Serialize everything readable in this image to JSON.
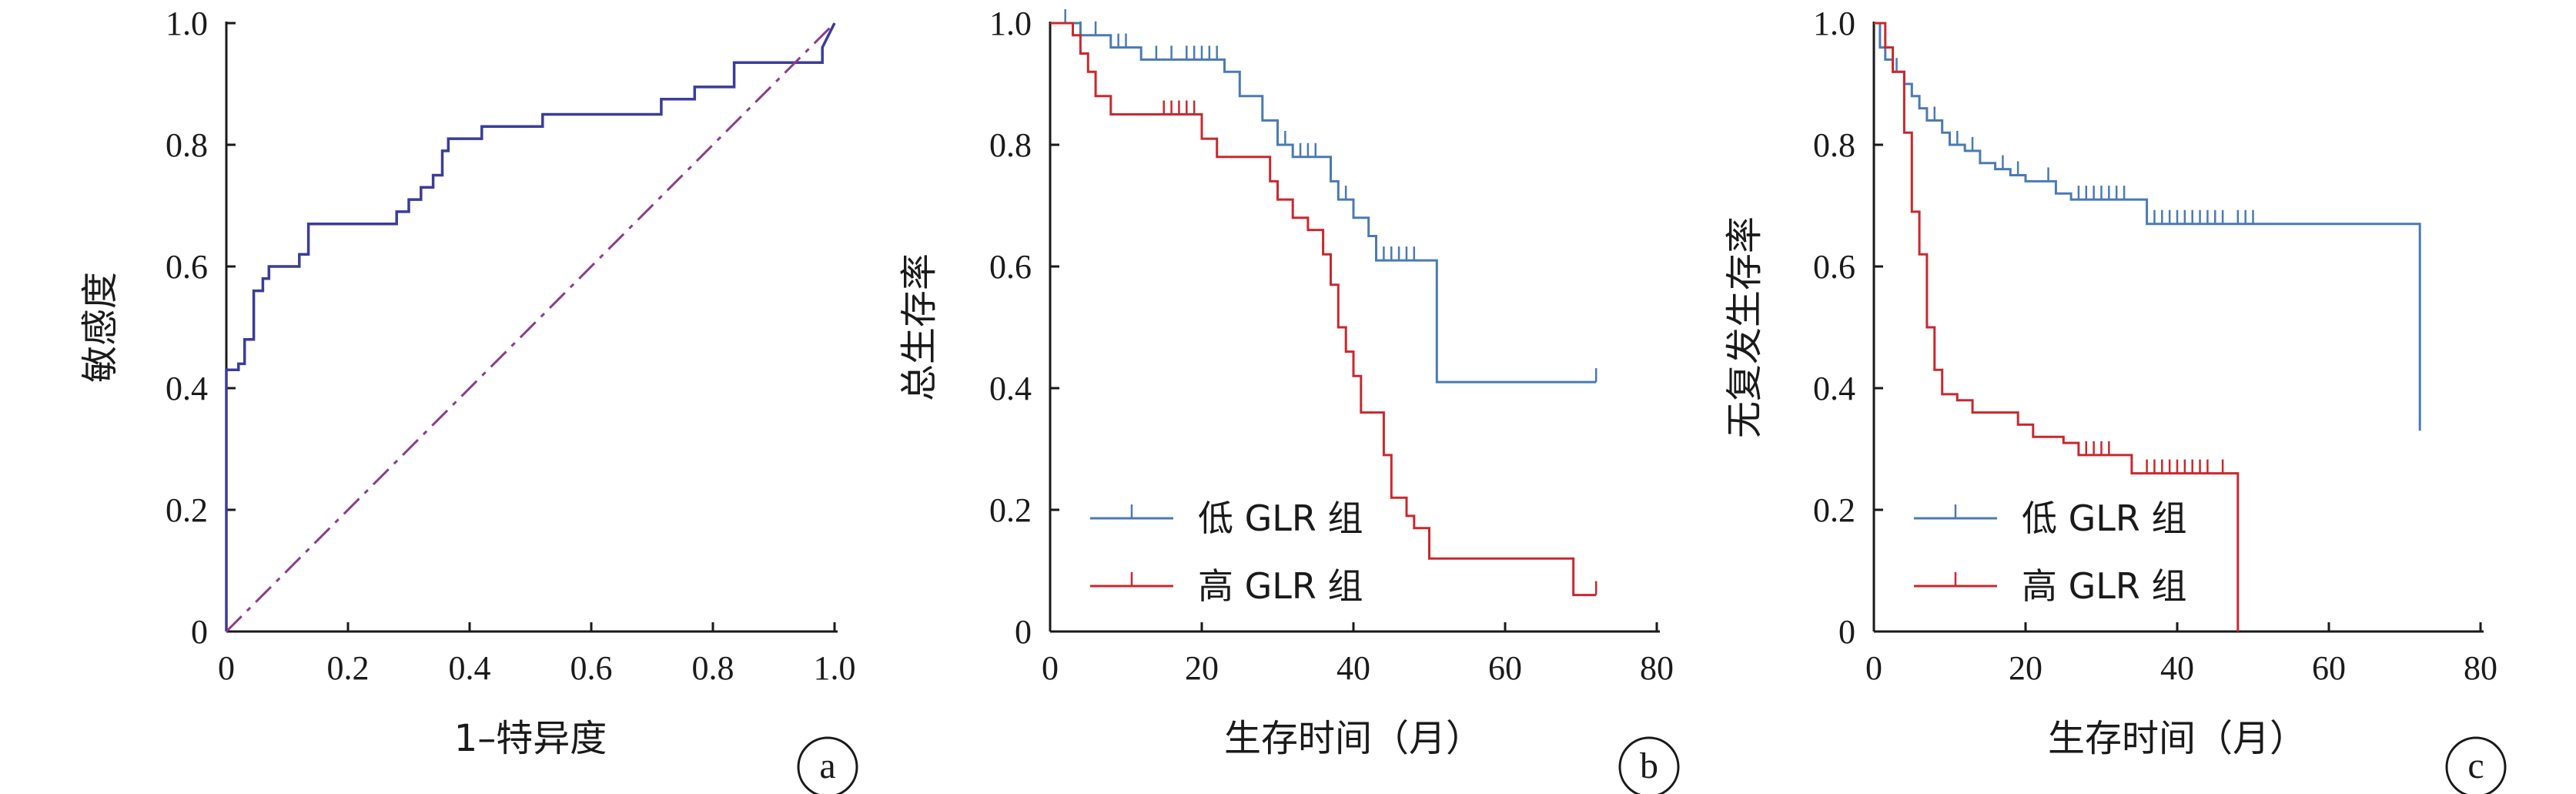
{
  "colors": {
    "roc": "#3b3c9a",
    "diagonal": "#8e3a8f",
    "low": "#4a7ab3",
    "high": "#c9282e",
    "axis": "#1a1a1a"
  },
  "chart_data": [
    {
      "id": "a",
      "type": "line",
      "panel_label": "a",
      "xlabel": "1–特异度",
      "ylabel": "敏感度",
      "xlim": [
        0,
        1
      ],
      "ylim": [
        0,
        1
      ],
      "xticks": [
        "0",
        "0.2",
        "0.4",
        "0.6",
        "0.8",
        "1.0"
      ],
      "yticks": [
        "0",
        "0.2",
        "0.4",
        "0.6",
        "0.8",
        "1.0"
      ],
      "grid": false,
      "series": [
        {
          "kind": "roc-step",
          "points": [
            [
              0,
              0
            ],
            [
              0,
              0.43
            ],
            [
              0.02,
              0.43
            ],
            [
              0.02,
              0.44
            ],
            [
              0.03,
              0.44
            ],
            [
              0.03,
              0.48
            ],
            [
              0.045,
              0.48
            ],
            [
              0.045,
              0.56
            ],
            [
              0.06,
              0.56
            ],
            [
              0.06,
              0.58
            ],
            [
              0.07,
              0.58
            ],
            [
              0.07,
              0.6
            ],
            [
              0.12,
              0.6
            ],
            [
              0.12,
              0.62
            ],
            [
              0.135,
              0.62
            ],
            [
              0.135,
              0.67
            ],
            [
              0.28,
              0.67
            ],
            [
              0.28,
              0.69
            ],
            [
              0.3,
              0.69
            ],
            [
              0.3,
              0.71
            ],
            [
              0.32,
              0.71
            ],
            [
              0.32,
              0.73
            ],
            [
              0.34,
              0.73
            ],
            [
              0.34,
              0.75
            ],
            [
              0.355,
              0.75
            ],
            [
              0.355,
              0.79
            ],
            [
              0.365,
              0.79
            ],
            [
              0.365,
              0.81
            ],
            [
              0.42,
              0.81
            ],
            [
              0.42,
              0.83
            ],
            [
              0.52,
              0.83
            ],
            [
              0.52,
              0.85
            ],
            [
              0.715,
              0.85
            ],
            [
              0.715,
              0.875
            ],
            [
              0.77,
              0.875
            ],
            [
              0.77,
              0.895
            ],
            [
              0.835,
              0.895
            ],
            [
              0.835,
              0.935
            ],
            [
              0.98,
              0.935
            ],
            [
              0.98,
              0.96
            ],
            [
              1.0,
              1.0
            ]
          ]
        },
        {
          "kind": "diagonal",
          "points": [
            [
              0,
              0
            ],
            [
              1,
              1
            ]
          ]
        }
      ]
    },
    {
      "id": "b",
      "type": "line",
      "panel_label": "b",
      "xlabel": "生存时间（月）",
      "ylabel": "总生存率",
      "xlim": [
        0,
        80
      ],
      "ylim": [
        0,
        1
      ],
      "xticks": [
        "0",
        "20",
        "40",
        "60",
        "80"
      ],
      "yticks": [
        "0",
        "0.2",
        "0.4",
        "0.6",
        "0.8",
        "1.0"
      ],
      "grid": false,
      "legend_position": "bottom-left",
      "series": [
        {
          "name": "低 GLR 组",
          "color_key": "low",
          "points": [
            [
              0,
              1
            ],
            [
              4,
              1
            ],
            [
              4,
              0.98
            ],
            [
              8,
              0.98
            ],
            [
              8,
              0.96
            ],
            [
              12,
              0.96
            ],
            [
              12,
              0.94
            ],
            [
              23,
              0.94
            ],
            [
              23,
              0.92
            ],
            [
              25,
              0.92
            ],
            [
              25,
              0.88
            ],
            [
              28,
              0.88
            ],
            [
              28,
              0.84
            ],
            [
              30,
              0.84
            ],
            [
              30,
              0.8
            ],
            [
              32,
              0.8
            ],
            [
              32,
              0.78
            ],
            [
              37,
              0.78
            ],
            [
              37,
              0.74
            ],
            [
              38,
              0.74
            ],
            [
              38,
              0.71
            ],
            [
              40,
              0.71
            ],
            [
              40,
              0.68
            ],
            [
              42,
              0.68
            ],
            [
              42,
              0.65
            ],
            [
              43,
              0.65
            ],
            [
              43,
              0.61
            ],
            [
              51,
              0.61
            ],
            [
              51,
              0.41
            ],
            [
              72,
              0.41
            ]
          ],
          "censors": [
            [
              2,
              1
            ],
            [
              4,
              0.98
            ],
            [
              6,
              0.98
            ],
            [
              9,
              0.96
            ],
            [
              10,
              0.96
            ],
            [
              14,
              0.94
            ],
            [
              16,
              0.94
            ],
            [
              18,
              0.94
            ],
            [
              19,
              0.94
            ],
            [
              20,
              0.94
            ],
            [
              21,
              0.94
            ],
            [
              22,
              0.94
            ],
            [
              31,
              0.8
            ],
            [
              33,
              0.78
            ],
            [
              34,
              0.78
            ],
            [
              35,
              0.78
            ],
            [
              38,
              0.71
            ],
            [
              39,
              0.71
            ],
            [
              44,
              0.61
            ],
            [
              45,
              0.61
            ],
            [
              46,
              0.61
            ],
            [
              47,
              0.61
            ],
            [
              48,
              0.61
            ],
            [
              72,
              0.41
            ]
          ]
        },
        {
          "name": "高 GLR 组",
          "color_key": "high",
          "points": [
            [
              0,
              1
            ],
            [
              3,
              1
            ],
            [
              3,
              0.98
            ],
            [
              4,
              0.98
            ],
            [
              4,
              0.95
            ],
            [
              5,
              0.95
            ],
            [
              5,
              0.92
            ],
            [
              6,
              0.92
            ],
            [
              6,
              0.88
            ],
            [
              8,
              0.88
            ],
            [
              8,
              0.85
            ],
            [
              20,
              0.85
            ],
            [
              20,
              0.81
            ],
            [
              22,
              0.81
            ],
            [
              22,
              0.78
            ],
            [
              29,
              0.78
            ],
            [
              29,
              0.74
            ],
            [
              30,
              0.74
            ],
            [
              30,
              0.71
            ],
            [
              32,
              0.71
            ],
            [
              32,
              0.68
            ],
            [
              34,
              0.68
            ],
            [
              34,
              0.66
            ],
            [
              36,
              0.66
            ],
            [
              36,
              0.62
            ],
            [
              37,
              0.62
            ],
            [
              37,
              0.57
            ],
            [
              38,
              0.57
            ],
            [
              38,
              0.5
            ],
            [
              39,
              0.5
            ],
            [
              39,
              0.46
            ],
            [
              40,
              0.46
            ],
            [
              40,
              0.42
            ],
            [
              41,
              0.42
            ],
            [
              41,
              0.36
            ],
            [
              44,
              0.36
            ],
            [
              44,
              0.29
            ],
            [
              45,
              0.29
            ],
            [
              45,
              0.22
            ],
            [
              47,
              0.22
            ],
            [
              47,
              0.19
            ],
            [
              48,
              0.19
            ],
            [
              48,
              0.17
            ],
            [
              50,
              0.17
            ],
            [
              50,
              0.12
            ],
            [
              69,
              0.12
            ],
            [
              69,
              0.06
            ],
            [
              72,
              0.06
            ]
          ],
          "censors": [
            [
              15,
              0.85
            ],
            [
              16,
              0.85
            ],
            [
              17,
              0.85
            ],
            [
              18,
              0.85
            ],
            [
              19,
              0.85
            ],
            [
              72,
              0.06
            ]
          ]
        }
      ]
    },
    {
      "id": "c",
      "type": "line",
      "panel_label": "c",
      "xlabel": "生存时间（月）",
      "ylabel": "无复发生存率",
      "xlim": [
        0,
        80
      ],
      "ylim": [
        0,
        1
      ],
      "xticks": [
        "0",
        "20",
        "40",
        "60",
        "80"
      ],
      "yticks": [
        "0",
        "0.2",
        "0.4",
        "0.6",
        "0.8",
        "1.0"
      ],
      "grid": false,
      "legend_position": "bottom-left",
      "series": [
        {
          "name": "低 GLR 组",
          "color_key": "low",
          "points": [
            [
              0,
              1
            ],
            [
              0.8,
              1
            ],
            [
              0.8,
              0.96
            ],
            [
              1.5,
              0.96
            ],
            [
              1.5,
              0.94
            ],
            [
              2.5,
              0.94
            ],
            [
              2.5,
              0.92
            ],
            [
              4,
              0.92
            ],
            [
              4,
              0.9
            ],
            [
              5,
              0.9
            ],
            [
              5,
              0.88
            ],
            [
              6,
              0.88
            ],
            [
              6,
              0.86
            ],
            [
              7,
              0.86
            ],
            [
              7,
              0.84
            ],
            [
              9,
              0.84
            ],
            [
              9,
              0.82
            ],
            [
              10,
              0.82
            ],
            [
              10,
              0.8
            ],
            [
              12,
              0.8
            ],
            [
              12,
              0.79
            ],
            [
              14,
              0.79
            ],
            [
              14,
              0.77
            ],
            [
              16,
              0.77
            ],
            [
              16,
              0.76
            ],
            [
              18,
              0.76
            ],
            [
              18,
              0.75
            ],
            [
              20,
              0.75
            ],
            [
              20,
              0.74
            ],
            [
              24,
              0.74
            ],
            [
              24,
              0.72
            ],
            [
              26,
              0.72
            ],
            [
              26,
              0.71
            ],
            [
              36,
              0.71
            ],
            [
              36,
              0.67
            ],
            [
              72,
              0.67
            ],
            [
              72,
              0.33
            ]
          ],
          "censors": [
            [
              3,
              0.92
            ],
            [
              8,
              0.84
            ],
            [
              11,
              0.8
            ],
            [
              13,
              0.79
            ],
            [
              17,
              0.76
            ],
            [
              19,
              0.75
            ],
            [
              23,
              0.74
            ],
            [
              27,
              0.71
            ],
            [
              28,
              0.71
            ],
            [
              29,
              0.71
            ],
            [
              30,
              0.71
            ],
            [
              31,
              0.71
            ],
            [
              32,
              0.71
            ],
            [
              33,
              0.71
            ],
            [
              37,
              0.67
            ],
            [
              38,
              0.67
            ],
            [
              39,
              0.67
            ],
            [
              40,
              0.67
            ],
            [
              41,
              0.67
            ],
            [
              42,
              0.67
            ],
            [
              43,
              0.67
            ],
            [
              44,
              0.67
            ],
            [
              45,
              0.67
            ],
            [
              46,
              0.67
            ],
            [
              48,
              0.67
            ],
            [
              49,
              0.67
            ],
            [
              50,
              0.67
            ]
          ]
        },
        {
          "name": "高 GLR 组",
          "color_key": "high",
          "points": [
            [
              0,
              1
            ],
            [
              1.5,
              1
            ],
            [
              1.5,
              0.96
            ],
            [
              2.5,
              0.96
            ],
            [
              2.5,
              0.92
            ],
            [
              4,
              0.92
            ],
            [
              4,
              0.82
            ],
            [
              5,
              0.82
            ],
            [
              5,
              0.69
            ],
            [
              6,
              0.69
            ],
            [
              6,
              0.62
            ],
            [
              7,
              0.62
            ],
            [
              7,
              0.5
            ],
            [
              8,
              0.5
            ],
            [
              8,
              0.43
            ],
            [
              9,
              0.43
            ],
            [
              9,
              0.39
            ],
            [
              11,
              0.39
            ],
            [
              11,
              0.38
            ],
            [
              13,
              0.38
            ],
            [
              13,
              0.36
            ],
            [
              19,
              0.36
            ],
            [
              19,
              0.34
            ],
            [
              21,
              0.34
            ],
            [
              21,
              0.32
            ],
            [
              25,
              0.32
            ],
            [
              25,
              0.31
            ],
            [
              27,
              0.31
            ],
            [
              27,
              0.29
            ],
            [
              34,
              0.29
            ],
            [
              34,
              0.26
            ],
            [
              48,
              0.26
            ],
            [
              48,
              0
            ]
          ],
          "censors": [
            [
              28,
              0.29
            ],
            [
              29,
              0.29
            ],
            [
              30,
              0.29
            ],
            [
              31,
              0.29
            ],
            [
              36,
              0.26
            ],
            [
              37,
              0.26
            ],
            [
              38,
              0.26
            ],
            [
              39,
              0.26
            ],
            [
              40,
              0.26
            ],
            [
              41,
              0.26
            ],
            [
              42,
              0.26
            ],
            [
              43,
              0.26
            ],
            [
              44,
              0.26
            ],
            [
              46,
              0.26
            ]
          ]
        }
      ]
    }
  ]
}
